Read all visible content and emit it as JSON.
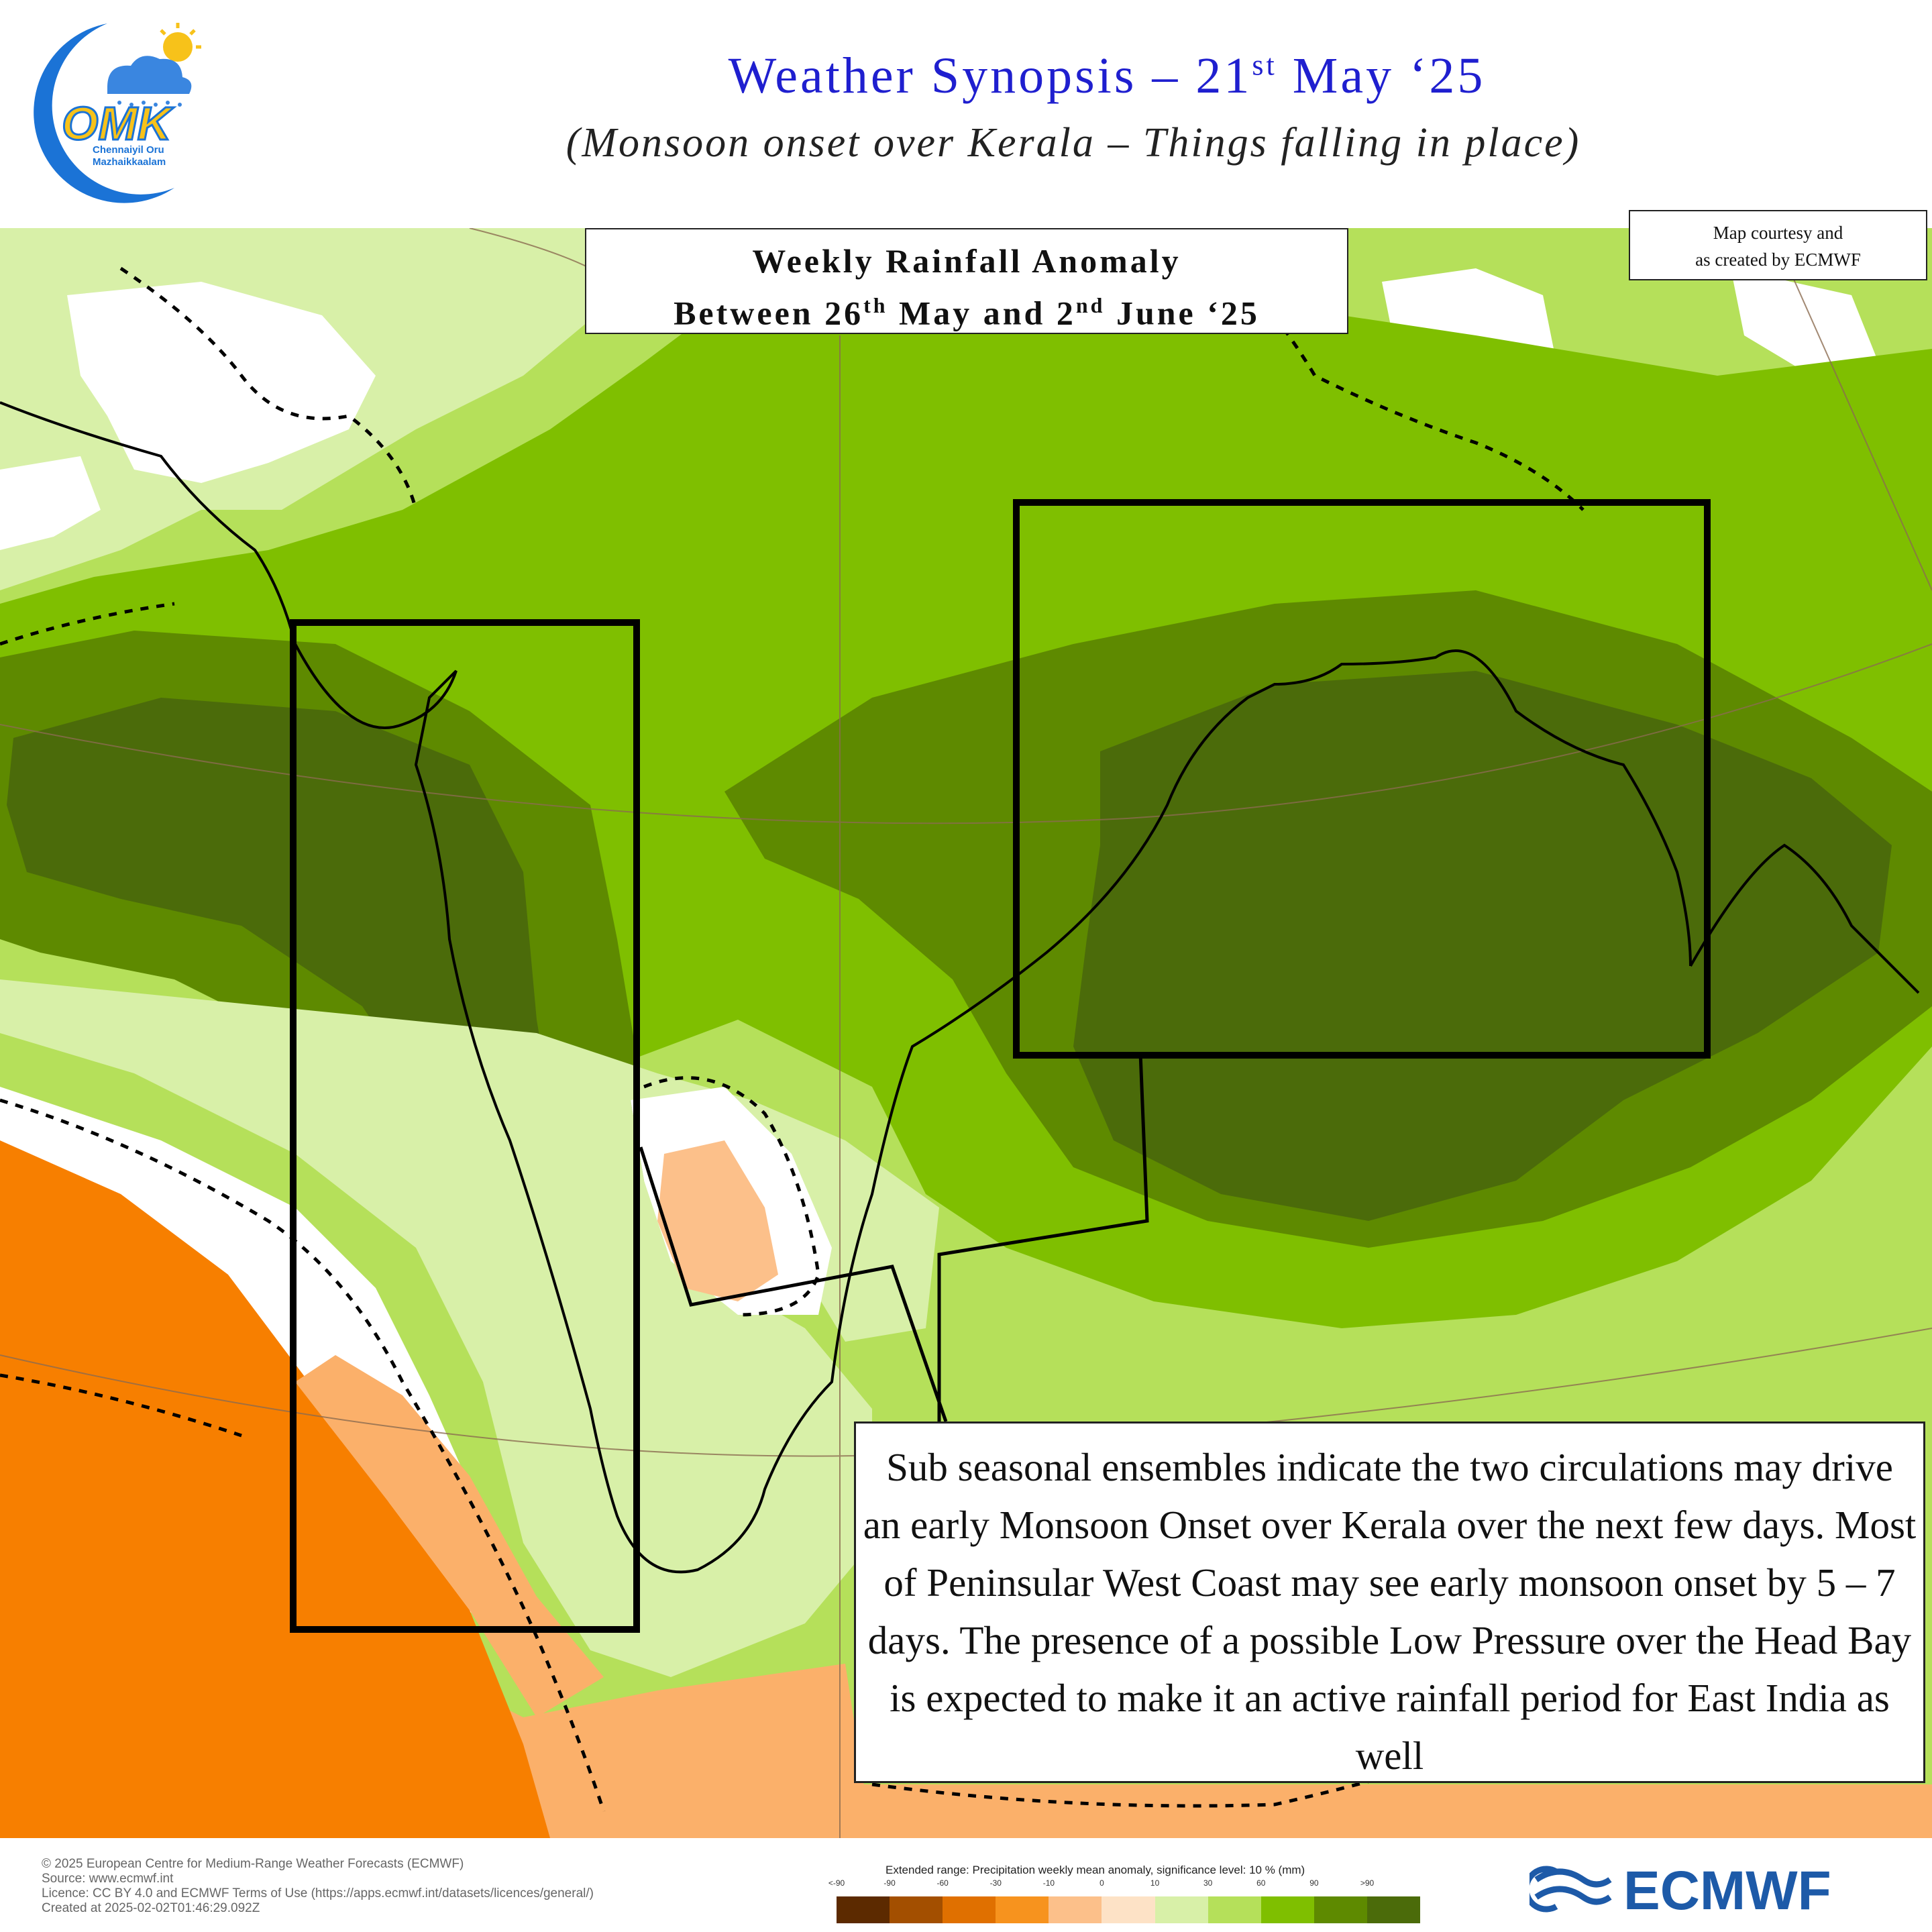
{
  "header": {
    "logo": {
      "lettering": "OMK",
      "line1": "Chennaiyil Oru",
      "line2": "Mazhaikkaalam"
    },
    "title": "Weather Synopsis – 21st May ‘25",
    "title_main": "Weather Synopsis – 21",
    "title_sup": "st",
    "title_end": " May ‘25",
    "subtitle": "(Monsoon onset over Kerala – Things falling in place)"
  },
  "map": {
    "anomaly_title": {
      "line1": "Weekly Rainfall Anomaly",
      "line2_a": "Between 26",
      "line2_sup1": "th",
      "line2_b": " May and 2",
      "line2_sup2": "nd",
      "line2_c": " June ‘25"
    },
    "credit": {
      "line1": "Map courtesy and",
      "line2": "as created by ECMWF"
    },
    "callout": "Sub seasonal ensembles indicate the two circulations may drive an early Monsoon Onset over Kerala over the next few days. Most of Peninsular West Coast may see early monsoon onset by 5 – 7 days. The presence of a possible Low Pressure over the Head Bay is expected to make it an active rainfall period for East India as well",
    "colors": {
      "dark_green": "#4b6b0a",
      "mid_dark_green": "#5e8a00",
      "mid_green": "#7fbf00",
      "light_green": "#b5e05a",
      "pale_green": "#d8f0a8",
      "white": "#ffffff",
      "peach": "#fdd0a8",
      "light_orange": "#fbb06a",
      "orange": "#f77f00",
      "box_outline": "#000000"
    }
  },
  "footer": {
    "copyright": "© 2025 European Centre for Medium-Range Weather Forecasts (ECMWF)",
    "source": "Source: www.ecmwf.int",
    "licence": "Licence: CC BY 4.0 and ECMWF Terms of Use (https://apps.ecmwf.int/datasets/licences/general/)",
    "created": "Created at 2025-02-02T01:46:29.092Z",
    "legend_title": "Extended range: Precipitation weekly mean anomaly, significance level: 10 % (mm)",
    "legend_ticks": [
      "<-90",
      "-90",
      "-60",
      "-30",
      "-10",
      "0",
      "10",
      "30",
      "60",
      "90",
      ">90"
    ],
    "legend_colors": [
      "#5c2a00",
      "#a34f00",
      "#e07000",
      "#f7931e",
      "#fcc08a",
      "#fde2c6",
      "#d8f0a8",
      "#b5e05a",
      "#7fbf00",
      "#5e8a00",
      "#4b6b0a"
    ],
    "brand": "ECMWF"
  }
}
